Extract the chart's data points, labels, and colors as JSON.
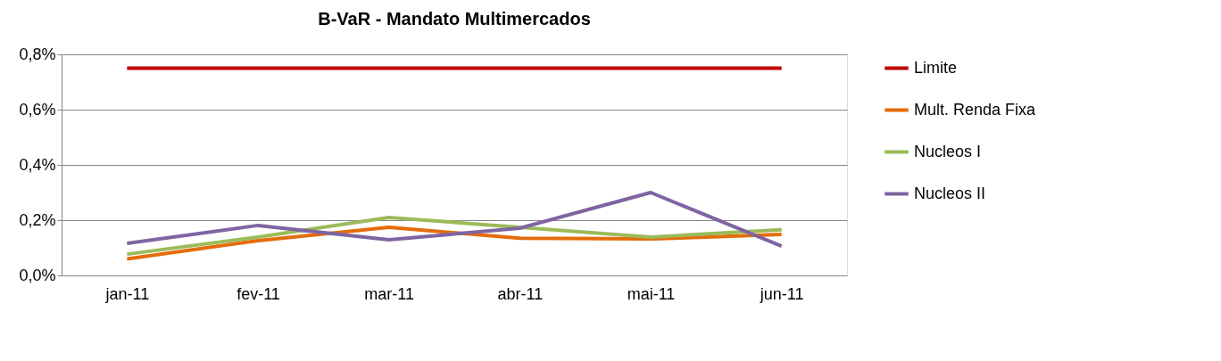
{
  "chart_data": {
    "type": "line",
    "title": "B-VaR - Mandato Multimercados",
    "categories": [
      "jan-11",
      "fev-11",
      "mar-11",
      "abr-11",
      "mai-11",
      "jun-11"
    ],
    "series": [
      {
        "name": "Limite",
        "color": "#c00000",
        "values": [
          0.75,
          0.75,
          0.75,
          0.75,
          0.75,
          0.75
        ]
      },
      {
        "name": "Mult. Renda Fixa",
        "color": "#e46c0a",
        "values": [
          0.06,
          0.126,
          0.174,
          0.135,
          0.132,
          0.148
        ]
      },
      {
        "name": "Nucleos I",
        "color": "#9bbb59",
        "values": [
          0.077,
          0.139,
          0.21,
          0.174,
          0.139,
          0.165
        ]
      },
      {
        "name": "Nucleos II",
        "color": "#8064a2",
        "values": [
          0.116,
          0.181,
          0.129,
          0.171,
          0.3,
          0.106
        ]
      }
    ],
    "ylim": [
      0,
      0.8
    ],
    "yticks": [
      {
        "value": 0,
        "label": "0,0%"
      },
      {
        "value": 0.2,
        "label": "0,2%"
      },
      {
        "value": 0.4,
        "label": "0,4%"
      },
      {
        "value": 0.6,
        "label": "0,6%"
      },
      {
        "value": 0.8,
        "label": "0,8%"
      }
    ],
    "grid": "y",
    "legend": "right",
    "marker": "none",
    "line_style": "solid"
  }
}
